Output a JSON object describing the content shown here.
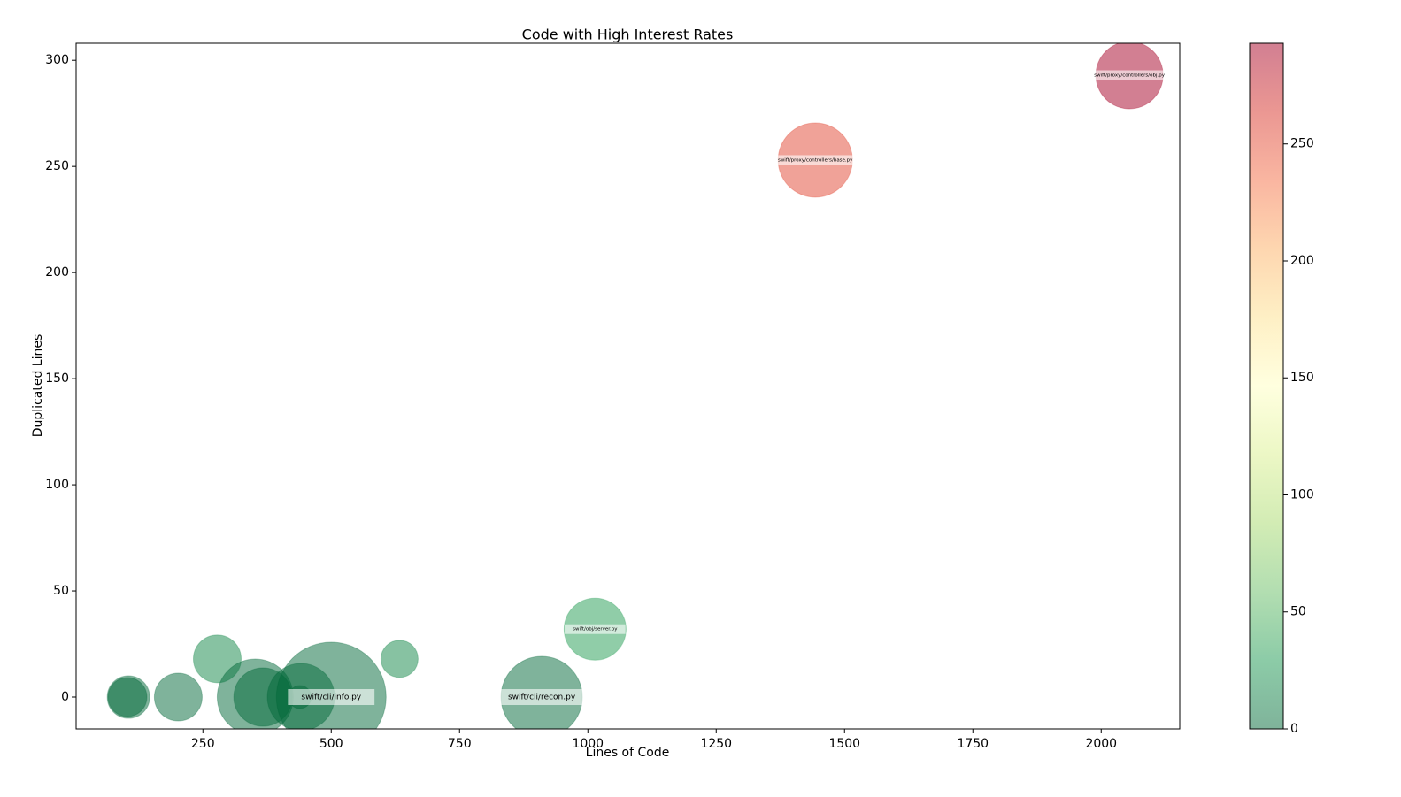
{
  "chart_data": {
    "type": "scatter",
    "title": "Code with High Interest Rates",
    "x_label": "Lines of Code",
    "y_label": "Duplicated Lines",
    "x": [
      2055,
      1443,
      1014,
      910,
      633,
      278,
      202,
      105,
      103,
      352,
      367,
      441,
      500,
      439
    ],
    "y": [
      293,
      253,
      32,
      0,
      18,
      18,
      0,
      0,
      0,
      0,
      0,
      0,
      0,
      0
    ],
    "sizes": [
      38,
      42,
      35,
      46,
      21,
      27,
      27,
      24,
      22,
      43,
      33,
      38,
      62,
      13
    ],
    "labels": [
      "swift/proxy/controllers/obj.py",
      "swift/proxy/controllers/base.py",
      "swift/obj/server.py",
      "swift/cli/recon.py",
      null,
      null,
      null,
      null,
      null,
      null,
      null,
      null,
      "swift/cli/info.py",
      null
    ],
    "xlim": [
      3,
      2153
    ],
    "ylim": [
      -15,
      308
    ],
    "xticks": [
      250,
      500,
      750,
      1000,
      1250,
      1500,
      1750,
      2000
    ],
    "yticks": [
      0,
      50,
      100,
      150,
      200,
      250,
      300
    ],
    "colormap": [
      "#006837",
      "#1a9850",
      "#66bd63",
      "#a6d96a",
      "#d9ef8b",
      "#ffffbf",
      "#fee08b",
      "#fdae61",
      "#f46d43",
      "#d73027",
      "#a50026"
    ],
    "clim": [
      0,
      293
    ],
    "cticks": [
      0,
      50,
      100,
      150,
      200,
      250
    ],
    "alpha": 0.5
  }
}
